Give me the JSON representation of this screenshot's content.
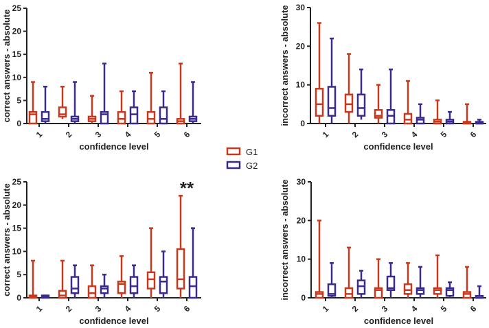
{
  "legend": {
    "items": [
      {
        "label": "G1",
        "color": "#c8381c"
      },
      {
        "label": "G2",
        "color": "#3a2a8c"
      }
    ]
  },
  "chart_data": [
    {
      "id": "top-left",
      "type": "boxplot",
      "title": "",
      "xlabel": "confidence level",
      "ylabel": "correct answers - absolute",
      "ylim": [
        0,
        25
      ],
      "yticks": [
        0,
        5,
        10,
        15,
        20,
        25
      ],
      "categories": [
        "1",
        "2",
        "3",
        "4",
        "5",
        "6"
      ],
      "annotations": [],
      "series": [
        {
          "name": "G1",
          "boxes": [
            {
              "min": 0,
              "q1": 0,
              "median": 2,
              "q3": 2.5,
              "max": 9
            },
            {
              "min": 1,
              "q1": 1.5,
              "median": 2,
              "q3": 3.5,
              "max": 8
            },
            {
              "min": 0,
              "q1": 0.5,
              "median": 1,
              "q3": 1.5,
              "max": 6
            },
            {
              "min": 0,
              "q1": 0,
              "median": 1,
              "q3": 2.5,
              "max": 7
            },
            {
              "min": 0,
              "q1": 0,
              "median": 1,
              "q3": 2.5,
              "max": 11
            },
            {
              "min": 0,
              "q1": 0,
              "median": 0.5,
              "q3": 1,
              "max": 13
            }
          ]
        },
        {
          "name": "G2",
          "boxes": [
            {
              "min": 0,
              "q1": 0.5,
              "median": 1,
              "q3": 2.5,
              "max": 8
            },
            {
              "min": 0,
              "q1": 0.5,
              "median": 1,
              "q3": 1.5,
              "max": 9
            },
            {
              "min": 0,
              "q1": 0,
              "median": 2,
              "q3": 2.5,
              "max": 13
            },
            {
              "min": 0,
              "q1": 0,
              "median": 2,
              "q3": 3.5,
              "max": 7
            },
            {
              "min": 0,
              "q1": 0,
              "median": 1,
              "q3": 3.5,
              "max": 7
            },
            {
              "min": 0,
              "q1": 0.5,
              "median": 1,
              "q3": 1.5,
              "max": 9
            }
          ]
        }
      ]
    },
    {
      "id": "top-right",
      "type": "boxplot",
      "title": "",
      "xlabel": "confidence level",
      "ylabel": "incorrect answers - absolute",
      "ylim": [
        0,
        30
      ],
      "yticks": [
        0,
        10,
        20,
        30
      ],
      "categories": [
        "1",
        "2",
        "3",
        "4",
        "5",
        "6"
      ],
      "annotations": [],
      "series": [
        {
          "name": "G1",
          "boxes": [
            {
              "min": 0,
              "q1": 2,
              "median": 5,
              "q3": 9,
              "max": 26
            },
            {
              "min": 0,
              "q1": 3,
              "median": 5,
              "q3": 7.5,
              "max": 18
            },
            {
              "min": 0,
              "q1": 1.5,
              "median": 2,
              "q3": 3.5,
              "max": 10
            },
            {
              "min": 0,
              "q1": 0,
              "median": 1,
              "q3": 2.5,
              "max": 11
            },
            {
              "min": 0,
              "q1": 0,
              "median": 0.5,
              "q3": 1,
              "max": 6
            },
            {
              "min": 0,
              "q1": 0,
              "median": 0,
              "q3": 0,
              "max": 5
            }
          ]
        },
        {
          "name": "G2",
          "boxes": [
            {
              "min": 0,
              "q1": 2,
              "median": 4,
              "q3": 9.5,
              "max": 22
            },
            {
              "min": 1,
              "q1": 2,
              "median": 4,
              "q3": 7.5,
              "max": 14
            },
            {
              "min": 0,
              "q1": 0,
              "median": 2,
              "q3": 3.5,
              "max": 14
            },
            {
              "min": 0,
              "q1": 0,
              "median": 1,
              "q3": 1.5,
              "max": 5
            },
            {
              "min": 0,
              "q1": 0,
              "median": 0.5,
              "q3": 1,
              "max": 3
            },
            {
              "min": 0,
              "q1": 0,
              "median": 0,
              "q3": 0.3,
              "max": 1
            }
          ]
        }
      ]
    },
    {
      "id": "bottom-left",
      "type": "boxplot",
      "title": "",
      "xlabel": "confidence level",
      "ylabel": "correct answers - absolute",
      "ylim": [
        0,
        25
      ],
      "yticks": [
        0,
        5,
        10,
        15,
        20,
        25
      ],
      "categories": [
        "1",
        "2",
        "3",
        "4",
        "5",
        "6"
      ],
      "annotations": [
        {
          "category": "6",
          "text": "**"
        }
      ],
      "series": [
        {
          "name": "G1",
          "boxes": [
            {
              "min": 0,
              "q1": 0,
              "median": 0.3,
              "q3": 0.5,
              "max": 8
            },
            {
              "min": 0,
              "q1": 0,
              "median": 0.5,
              "q3": 1.5,
              "max": 8
            },
            {
              "min": 0,
              "q1": 0,
              "median": 1,
              "q3": 2.5,
              "max": 7
            },
            {
              "min": 0,
              "q1": 1,
              "median": 3,
              "q3": 3.5,
              "max": 9
            },
            {
              "min": 0,
              "q1": 2,
              "median": 4,
              "q3": 5.5,
              "max": 15
            },
            {
              "min": 0,
              "q1": 2,
              "median": 4,
              "q3": 10.5,
              "max": 22
            }
          ]
        },
        {
          "name": "G2",
          "boxes": [
            {
              "min": 0,
              "q1": 0,
              "median": 0.3,
              "q3": 0.5,
              "max": 0.5
            },
            {
              "min": 0,
              "q1": 1,
              "median": 2,
              "q3": 4.5,
              "max": 7
            },
            {
              "min": 0,
              "q1": 1,
              "median": 2,
              "q3": 2.5,
              "max": 5
            },
            {
              "min": 0,
              "q1": 1,
              "median": 2.5,
              "q3": 4.5,
              "max": 7
            },
            {
              "min": 0,
              "q1": 1,
              "median": 3.5,
              "q3": 4.5,
              "max": 10
            },
            {
              "min": 0,
              "q1": 0,
              "median": 2.5,
              "q3": 4.5,
              "max": 15
            }
          ]
        }
      ]
    },
    {
      "id": "bottom-right",
      "type": "boxplot",
      "title": "",
      "xlabel": "confidence level",
      "ylabel": "incorrect answers - absolute",
      "ylim": [
        0,
        30
      ],
      "yticks": [
        0,
        10,
        20,
        30
      ],
      "categories": [
        "1",
        "2",
        "3",
        "4",
        "5",
        "6"
      ],
      "annotations": [],
      "series": [
        {
          "name": "G1",
          "boxes": [
            {
              "min": 0,
              "q1": 0,
              "median": 1,
              "q3": 1.5,
              "max": 20
            },
            {
              "min": 0,
              "q1": 0,
              "median": 1,
              "q3": 2.5,
              "max": 13
            },
            {
              "min": 0,
              "q1": 0,
              "median": 2,
              "q3": 2.5,
              "max": 10
            },
            {
              "min": 0,
              "q1": 1,
              "median": 2,
              "q3": 3.5,
              "max": 9
            },
            {
              "min": 0,
              "q1": 1,
              "median": 2,
              "q3": 2.5,
              "max": 11
            },
            {
              "min": 0,
              "q1": 0,
              "median": 1,
              "q3": 1.5,
              "max": 8
            }
          ]
        },
        {
          "name": "G2",
          "boxes": [
            {
              "min": 0,
              "q1": 0.5,
              "median": 1,
              "q3": 3.5,
              "max": 9
            },
            {
              "min": 0,
              "q1": 1,
              "median": 3,
              "q3": 4.5,
              "max": 7
            },
            {
              "min": 0,
              "q1": 2,
              "median": 2.5,
              "q3": 5.5,
              "max": 9
            },
            {
              "min": 0,
              "q1": 1,
              "median": 2,
              "q3": 2.5,
              "max": 8
            },
            {
              "min": 0,
              "q1": 0.5,
              "median": 2,
              "q3": 2.5,
              "max": 4
            },
            {
              "min": 0,
              "q1": 0,
              "median": 0,
              "q3": 0.5,
              "max": 3
            }
          ]
        }
      ]
    }
  ]
}
